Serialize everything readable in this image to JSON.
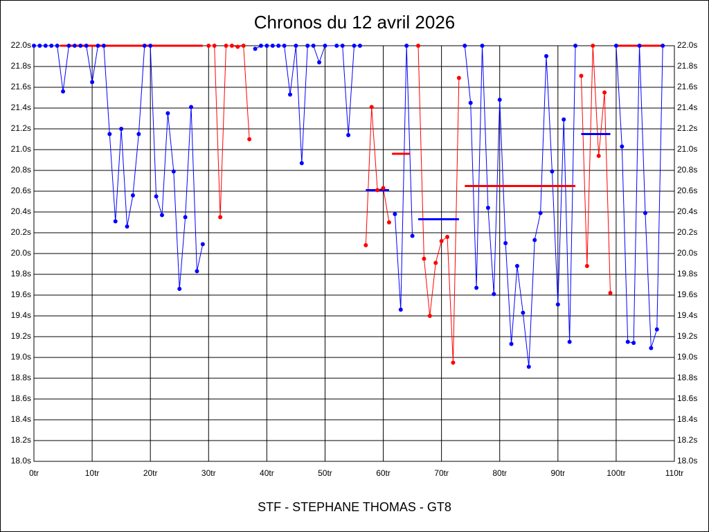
{
  "chart_data": {
    "type": "line",
    "title": "Chronos du 12 avril 2026",
    "footer": "STF - STEPHANE THOMAS - GT8",
    "xlim": [
      0,
      110
    ],
    "xticks": [
      {
        "value": 0,
        "label": "0tr"
      },
      {
        "value": 10,
        "label": "10tr"
      },
      {
        "value": 20,
        "label": "20tr"
      },
      {
        "value": 30,
        "label": "30tr"
      },
      {
        "value": 40,
        "label": "40tr"
      },
      {
        "value": 50,
        "label": "50tr"
      },
      {
        "value": 60,
        "label": "60tr"
      },
      {
        "value": 70,
        "label": "70tr"
      },
      {
        "value": 80,
        "label": "80tr"
      },
      {
        "value": 90,
        "label": "90tr"
      },
      {
        "value": 100,
        "label": "100tr"
      },
      {
        "value": 110,
        "label": "110tr"
      }
    ],
    "ylim": [
      18,
      22
    ],
    "yticks": [
      {
        "value": 18,
        "label": "18.0s"
      },
      {
        "value": 18.2,
        "label": "18.2s"
      },
      {
        "value": 18.4,
        "label": "18.4s"
      },
      {
        "value": 18.6,
        "label": "18.6s"
      },
      {
        "value": 18.8,
        "label": "18.8s"
      },
      {
        "value": 19,
        "label": "19.0s"
      },
      {
        "value": 19.2,
        "label": "19.2s"
      },
      {
        "value": 19.4,
        "label": "19.4s"
      },
      {
        "value": 19.6,
        "label": "19.6s"
      },
      {
        "value": 19.8,
        "label": "19.8s"
      },
      {
        "value": 20,
        "label": "20.0s"
      },
      {
        "value": 20.2,
        "label": "20.2s"
      },
      {
        "value": 20.4,
        "label": "20.4s"
      },
      {
        "value": 20.6,
        "label": "20.6s"
      },
      {
        "value": 20.8,
        "label": "20.8s"
      },
      {
        "value": 21,
        "label": "21.0s"
      },
      {
        "value": 21.2,
        "label": "21.2s"
      },
      {
        "value": 21.4,
        "label": "21.4s"
      },
      {
        "value": 21.6,
        "label": "21.6s"
      },
      {
        "value": 21.8,
        "label": "21.8s"
      },
      {
        "value": 22,
        "label": "22.0s"
      }
    ],
    "grid": true,
    "series": [
      {
        "color": "#0000ff",
        "x": [
          0,
          1,
          2,
          3,
          4,
          5,
          6,
          7,
          8,
          9,
          10,
          11,
          12,
          13,
          14,
          15,
          16,
          17,
          18,
          19,
          20,
          21,
          22,
          23,
          24,
          25,
          26,
          27,
          28,
          29
        ],
        "values": [
          22,
          22,
          22,
          22,
          22,
          21.56,
          22,
          22,
          22,
          22,
          21.65,
          22,
          22,
          21.15,
          20.31,
          21.2,
          20.26,
          20.56,
          21.15,
          22,
          22,
          20.55,
          20.37,
          21.35,
          20.79,
          19.66,
          20.35,
          21.41,
          19.83,
          20.09
        ]
      },
      {
        "color": "#ff0000",
        "x": [
          30,
          31,
          32,
          33,
          34,
          35,
          36,
          37
        ],
        "values": [
          22,
          22,
          20.35,
          22,
          22,
          21.99,
          22,
          21.1
        ]
      },
      {
        "color": "#0000ff",
        "x": [
          38,
          39,
          40,
          41,
          42,
          43,
          44,
          45,
          46,
          47,
          48,
          49,
          50,
          52,
          53,
          54,
          55,
          56
        ],
        "values": [
          21.97,
          22,
          22,
          22,
          22,
          22,
          21.53,
          22,
          20.87,
          22,
          22,
          21.84,
          22,
          22,
          22,
          21.14,
          22,
          22
        ]
      },
      {
        "color": "#ff0000",
        "x": [
          57,
          58,
          59,
          60,
          61
        ],
        "values": [
          20.08,
          21.41,
          20.61,
          20.63,
          20.3
        ]
      },
      {
        "color": "#0000ff",
        "x": [
          62,
          63,
          64,
          65
        ],
        "values": [
          20.38,
          19.46,
          22,
          20.17
        ]
      },
      {
        "color": "#ff0000",
        "x": [
          66,
          67,
          68,
          69,
          70,
          71,
          72,
          73
        ],
        "values": [
          22,
          19.95,
          19.4,
          19.91,
          20.12,
          20.16,
          18.95,
          21.69
        ]
      },
      {
        "color": "#0000ff",
        "x": [
          74,
          75,
          76,
          77,
          78,
          79,
          80,
          81,
          82,
          83,
          84,
          85,
          86,
          87,
          88,
          89,
          90,
          91,
          92,
          93
        ],
        "values": [
          22,
          21.45,
          19.67,
          22,
          20.44,
          19.61,
          21.48,
          20.1,
          19.13,
          19.88,
          19.43,
          18.91,
          20.13,
          20.39,
          21.9,
          20.79,
          19.51,
          21.29,
          19.15,
          22
        ]
      },
      {
        "color": "#ff0000",
        "x": [
          94,
          95,
          96,
          97,
          98,
          99
        ],
        "values": [
          21.71,
          19.88,
          22,
          20.94,
          21.55,
          19.62
        ]
      },
      {
        "color": "#0000ff",
        "x": [
          100,
          101,
          102,
          103,
          104,
          105,
          106,
          107,
          108
        ],
        "values": [
          22,
          21.03,
          19.15,
          19.14,
          22,
          20.39,
          19.09,
          19.27,
          22
        ]
      }
    ],
    "averages": [
      {
        "color": "#ff0000",
        "value": 22,
        "x": [
          4.5,
          29
        ]
      },
      {
        "color": "#0000ff",
        "value": 20.61,
        "x": [
          57,
          61
        ]
      },
      {
        "color": "#ff0000",
        "value": 20.96,
        "x": [
          61.5,
          64.5
        ]
      },
      {
        "color": "#0000ff",
        "value": 20.33,
        "x": [
          66,
          73
        ]
      },
      {
        "color": "#ff0000",
        "value": 20.65,
        "x": [
          74,
          93
        ]
      },
      {
        "color": "#0000ff",
        "value": 21.15,
        "x": [
          94,
          99
        ]
      },
      {
        "color": "#ff0000",
        "value": 22,
        "x": [
          100,
          108
        ]
      }
    ]
  }
}
